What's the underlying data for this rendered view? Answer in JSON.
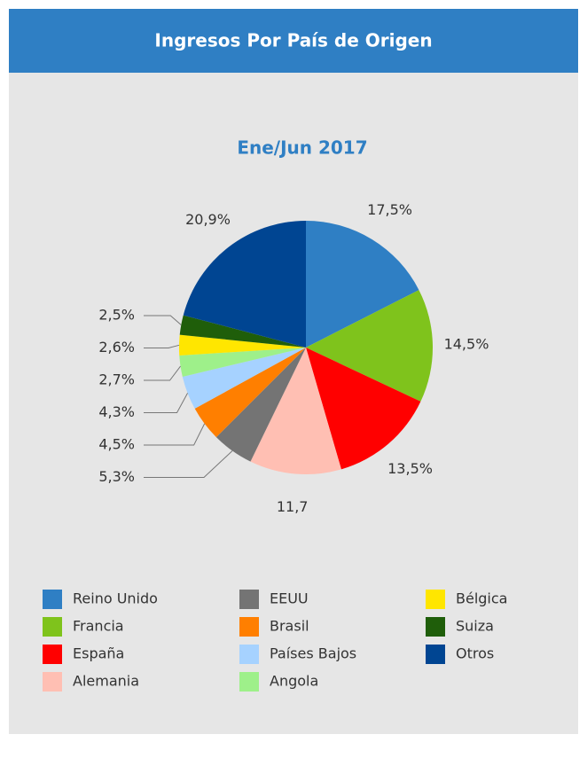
{
  "header": {
    "title": "Ingresos Por País de Origen"
  },
  "chart_data": {
    "type": "pie",
    "title": "Ene/Jun 2017",
    "categories": [
      "Reino Unido",
      "Francia",
      "España",
      "Alemania",
      "EEUU",
      "Brasil",
      "Países Bajos",
      "Angola",
      "Bélgica",
      "Suiza",
      "Otros"
    ],
    "values": [
      17.5,
      14.5,
      13.5,
      11.7,
      5.3,
      4.5,
      4.3,
      2.7,
      2.6,
      2.5,
      20.9
    ],
    "value_labels": [
      "17,5%",
      "14,5%",
      "13,5%",
      "11,7",
      "5,3%",
      "4,5%",
      "4,3%",
      "2,7%",
      "2,6%",
      "2,5%",
      "20,9%"
    ],
    "colors": [
      "#2f7fc4",
      "#7fc31c",
      "#ff0000",
      "#ffbfb3",
      "#747474",
      "#ff7f00",
      "#a6d2ff",
      "#9ef08a",
      "#ffe600",
      "#1f5e0a",
      "#004592"
    ],
    "legend": "bottom"
  }
}
